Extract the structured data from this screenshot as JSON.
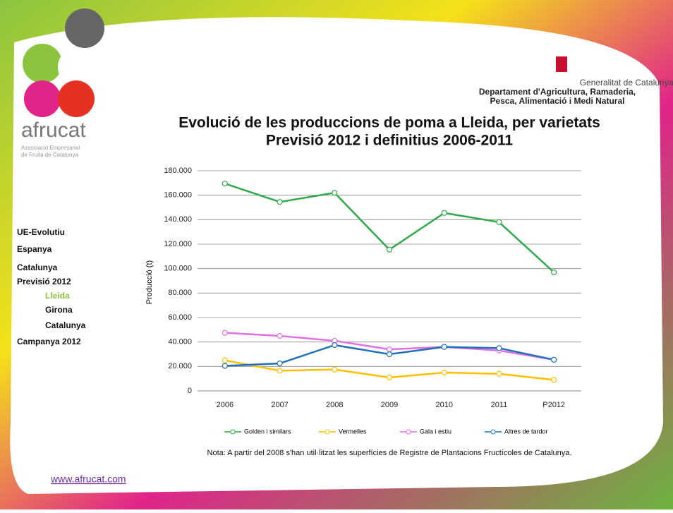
{
  "logo": {
    "name": "afrucat",
    "tagline": [
      "Associació Empresarial",
      "de Fruita de Catalunya"
    ]
  },
  "header": {
    "lines": [
      "Generalitat de Catalunya",
      "Departament d'Agricultura, Ramaderia,",
      "Pesca, Alimentació i Medi Natural"
    ]
  },
  "nav": [
    "UE-Evolutiu",
    "Espanya",
    "Catalunya",
    "Previsió 2012",
    "Lleida",
    "Girona",
    "Catalunya",
    "Campanya 2012"
  ],
  "note": "Nota: A partir del 2008 s'han util·litzat les superfícies de Registre de Plantacions Fructícoles de Catalunya.",
  "website": "www.afrucat.com",
  "chart_data": {
    "type": "line",
    "title": "Evolució de les produccions de poma a Lleida, per varietats",
    "subtitle": "Previsió 2012 i definitius 2006-2011",
    "y_label": "Producció (t)",
    "categories": [
      "2006",
      "2007",
      "2008",
      "2009",
      "2010",
      "2011",
      "P2012"
    ],
    "series": [
      {
        "name": "Golden i similars",
        "color": "#2eaa4a",
        "values": [
          169500,
          154500,
          162000,
          115500,
          145500,
          138000,
          97000
        ]
      },
      {
        "name": "Vermelles",
        "color": "#ffc000",
        "values": [
          25000,
          16500,
          17500,
          11000,
          15000,
          14000,
          9000
        ]
      },
      {
        "name": "Gala i estiu",
        "color": "#e46fe4",
        "values": [
          47500,
          45000,
          41000,
          34000,
          36000,
          33000,
          25500
        ]
      },
      {
        "name": "Altres de tardor",
        "color": "#1f70b8",
        "values": [
          20500,
          22500,
          37500,
          30000,
          36000,
          35000,
          25500
        ]
      }
    ],
    "ylim": [
      0,
      180000
    ],
    "yticks": [
      0,
      {
        "value": 20000,
        "label": "20.000"
      },
      {
        "value": 40000,
        "label": "40.000"
      },
      {
        "value": 60000,
        "label": "60.000"
      },
      {
        "value": 80000,
        "label": "80.000"
      },
      {
        "value": 100000,
        "label": "100.000"
      },
      {
        "value": 120000,
        "label": "120.000"
      },
      {
        "value": 140000,
        "label": "140.000"
      },
      {
        "value": 160000,
        "label": "160.000"
      },
      {
        "value": 180000,
        "label": "180.000"
      }
    ],
    "grid": true,
    "legend": "bottom"
  }
}
